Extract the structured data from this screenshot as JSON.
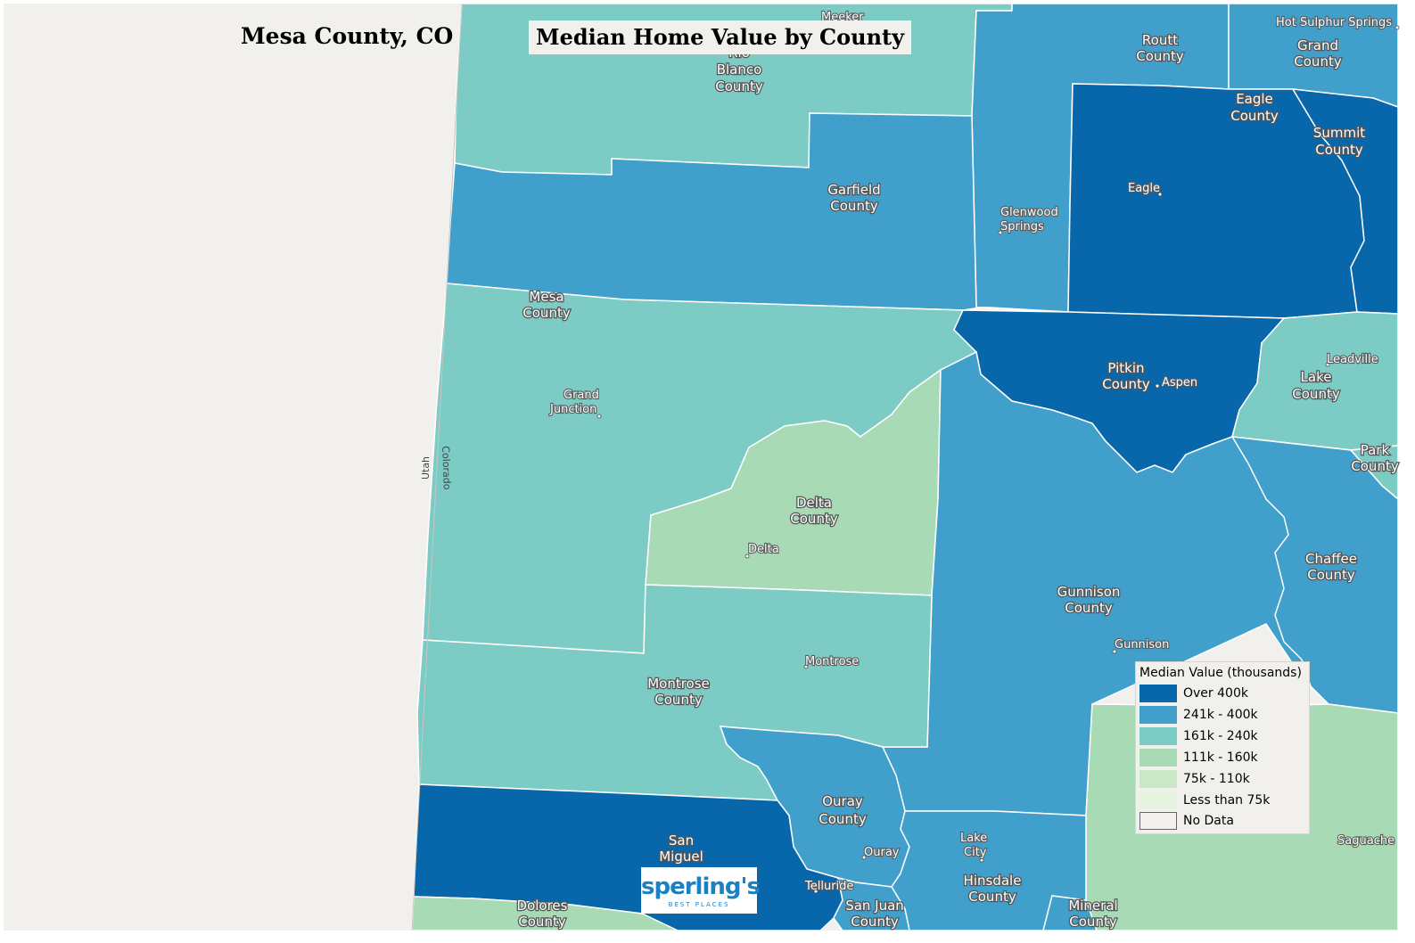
{
  "header": {
    "location_title": "Mesa County, CO",
    "map_title": "Median Home Value by County"
  },
  "legend": {
    "title": "Median Value (thousands)",
    "items": [
      {
        "label": "Over 400k",
        "color": "#0866aa"
      },
      {
        "label": "241k - 400k",
        "color": "#41a0cb"
      },
      {
        "label": "161k - 240k",
        "color": "#7ccbc4"
      },
      {
        "label": "111k - 160k",
        "color": "#a8dbb5"
      },
      {
        "label": "75k - 110k",
        "color": "#cbe8c6"
      },
      {
        "label": "Less than 75k",
        "color": "#e6f3e0"
      },
      {
        "label": "No Data",
        "color": "#f1f0ec"
      }
    ]
  },
  "counties": {
    "rio_blanco": {
      "l1": "Rio",
      "l2": "Blanco",
      "l3": "County"
    },
    "routt": {
      "l1": "Routt",
      "l2": "County"
    },
    "grand": {
      "l1": "Grand",
      "l2": "County"
    },
    "eagle": {
      "l1": "Eagle",
      "l2": "County"
    },
    "summit": {
      "l1": "Summit",
      "l2": "County"
    },
    "garfield": {
      "l1": "Garfield",
      "l2": "County"
    },
    "mesa": {
      "l1": "Mesa",
      "l2": "County"
    },
    "pitkin": {
      "l1": "Pitkin",
      "l2": "County"
    },
    "lake": {
      "l1": "Lake",
      "l2": "County"
    },
    "park": {
      "l1": "Park",
      "l2": "County"
    },
    "delta": {
      "l1": "Delta",
      "l2": "County"
    },
    "chaffee": {
      "l1": "Chaffee",
      "l2": "County"
    },
    "gunnison": {
      "l1": "Gunnison",
      "l2": "County"
    },
    "montrose": {
      "l1": "Montrose",
      "l2": "County"
    },
    "ouray": {
      "l1": "Ouray",
      "l2": "County"
    },
    "san_miguel": {
      "l1": "San",
      "l2": "Miguel"
    },
    "hinsdale": {
      "l1": "Hinsdale",
      "l2": "County"
    },
    "dolores": {
      "l1": "Dolores",
      "l2": "County"
    },
    "san_juan": {
      "l1": "San Juan",
      "l2": "County"
    },
    "mineral": {
      "l1": "Mineral",
      "l2": "County"
    }
  },
  "cities": {
    "meeker": "Meeker",
    "hot_sulphur_springs": "Hot Sulphur Springs",
    "eagle": "Eagle",
    "glenwood_springs_1": "Glenwood",
    "glenwood_springs_2": "Springs",
    "grand_junction_1": "Grand",
    "grand_junction_2": "Junction",
    "aspen": "Aspen",
    "leadville": "Leadville",
    "delta": "Delta",
    "montrose": "Montrose",
    "gunnison": "Gunnison",
    "ouray": "Ouray",
    "lake_city_1": "Lake",
    "lake_city_2": "City",
    "telluride": "Telluride",
    "saguache": "Saguache"
  },
  "state_labels": {
    "utah": "Utah",
    "colorado": "Colorado"
  },
  "logo": {
    "main": "sperling's",
    "sub": "BEST PLACES"
  }
}
